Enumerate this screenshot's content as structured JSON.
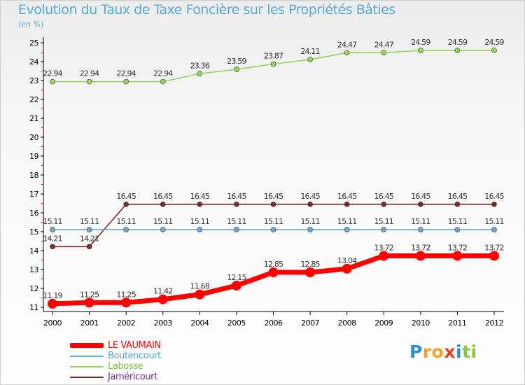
{
  "title": "Evolution du Taux de Taxe Foncière sur les Propriétés Bâties",
  "subtitle": "(en %)",
  "logo": {
    "p": "P",
    "r": "r",
    "o": "o",
    "x": "x",
    "i": "i",
    "t": "t",
    "i2": "i"
  },
  "chart_data": {
    "type": "line",
    "title": "Evolution du Taux de Taxe Foncière sur les Propriétés Bâties",
    "ylabel": "(en %)",
    "xlabel": "",
    "ylim": [
      11,
      25
    ],
    "yticks": [
      11,
      12,
      13,
      14,
      15,
      16,
      17,
      18,
      19,
      20,
      21,
      22,
      23,
      24,
      25
    ],
    "categories": [
      "2000",
      "2001",
      "2002",
      "2003",
      "2004",
      "2005",
      "2006",
      "2007",
      "2008",
      "2009",
      "2010",
      "2011",
      "2012"
    ],
    "series": [
      {
        "name": "LE VAUMAIN",
        "color": "#ff0000",
        "values": [
          11.19,
          11.25,
          11.25,
          11.42,
          11.68,
          12.15,
          12.85,
          12.85,
          13.04,
          13.72,
          13.72,
          13.72,
          13.72
        ],
        "labels": [
          "11.19",
          "11.25",
          "11.25",
          "11.42",
          "11.68",
          "12.15",
          "12.85",
          "12.85",
          "13.04",
          "13.72",
          "13.72",
          "13.72",
          "13.72"
        ]
      },
      {
        "name": "Boutencourt",
        "color": "#6aa6d6",
        "values": [
          15.11,
          15.11,
          15.11,
          15.11,
          15.11,
          15.11,
          15.11,
          15.11,
          15.11,
          15.11,
          15.11,
          15.11,
          15.11
        ],
        "labels": [
          "15.11",
          "15.11",
          "15.11",
          "15.11",
          "15.11",
          "15.11",
          "15.11",
          "15.11",
          "15.11",
          "15.11",
          "15.11",
          "15.11",
          "15.11"
        ]
      },
      {
        "name": "Labosse",
        "color": "#99d45a",
        "values": [
          22.94,
          22.94,
          22.94,
          22.94,
          23.36,
          23.59,
          23.87,
          24.11,
          24.47,
          24.47,
          24.59,
          24.59,
          24.59
        ],
        "labels": [
          "22.94",
          "22.94",
          "22.94",
          "22.94",
          "23.36",
          "23.59",
          "23.87",
          "24.11",
          "24.47",
          "24.47",
          "24.59",
          "24.59",
          "24.59"
        ]
      },
      {
        "name": "Jaméricourt",
        "color": "#7a2a2a",
        "values": [
          14.21,
          14.21,
          16.45,
          16.45,
          16.45,
          16.45,
          16.45,
          16.45,
          16.45,
          16.45,
          16.45,
          16.45,
          16.45
        ],
        "labels": [
          "14.21",
          "14.21",
          "16.45",
          "16.45",
          "16.45",
          "16.45",
          "16.45",
          "16.45",
          "16.45",
          "16.45",
          "16.45",
          "16.45",
          "16.45"
        ]
      }
    ],
    "legend_position": "bottom-left"
  }
}
